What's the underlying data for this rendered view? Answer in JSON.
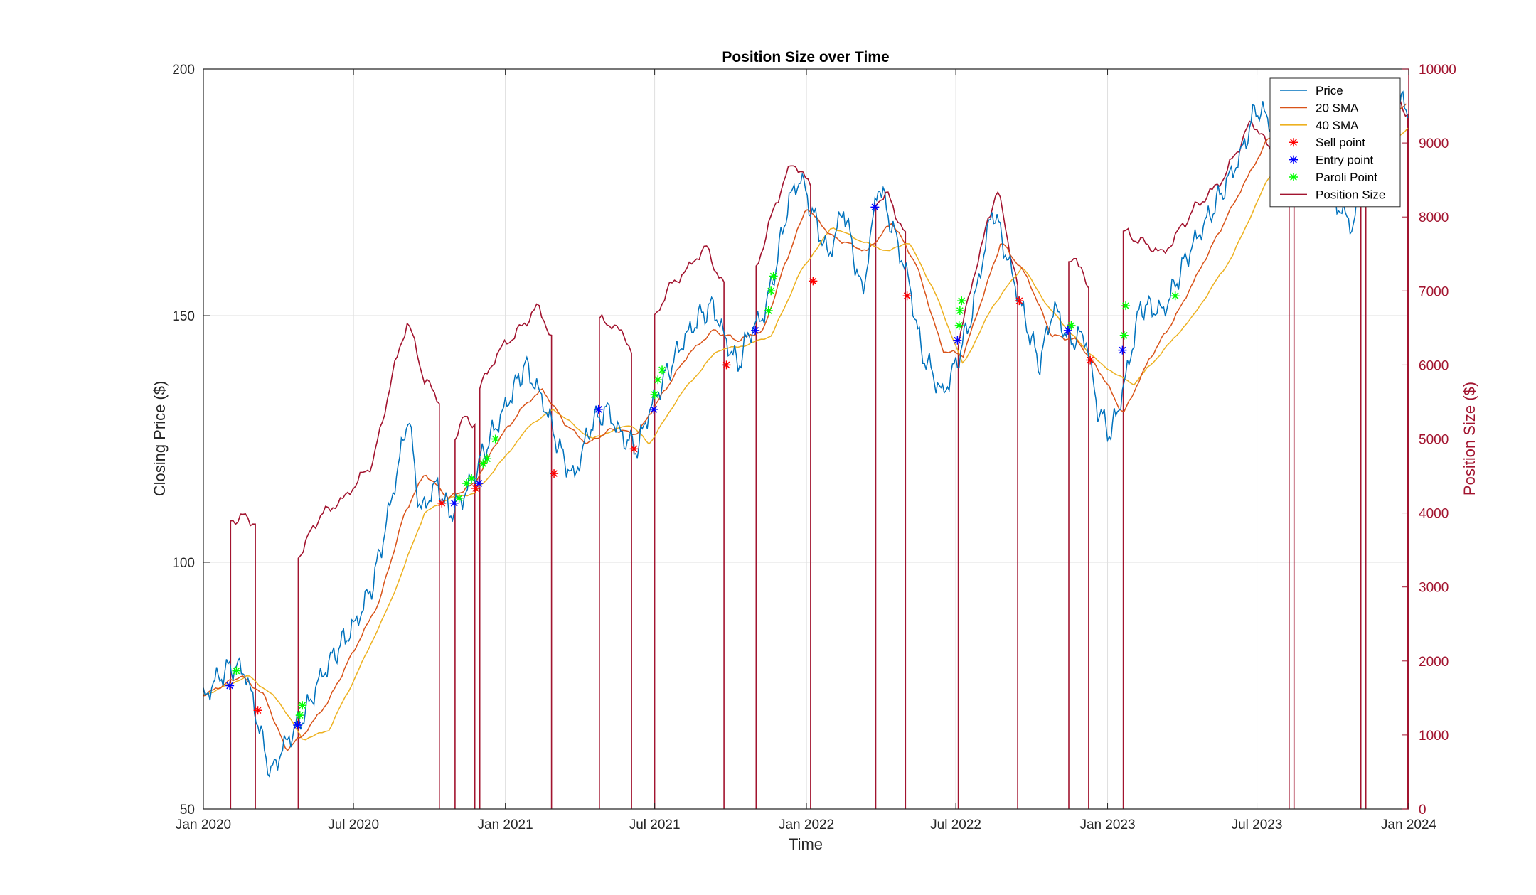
{
  "chart_data": {
    "type": "line",
    "title": "Position Size over Time",
    "xlabel": "Time",
    "ylabel": "Closing Price ($)",
    "ylabel_right": "Position Size ($)",
    "xlim": [
      "2020-01-01",
      "2024-01-01"
    ],
    "ylim": [
      50,
      200
    ],
    "ylim_right": [
      0,
      10000
    ],
    "x_ticks": [
      {
        "date": "2020-01-01",
        "label": "Jan 2020"
      },
      {
        "date": "2020-07-01",
        "label": "Jul 2020"
      },
      {
        "date": "2021-01-01",
        "label": "Jan 2021"
      },
      {
        "date": "2021-07-01",
        "label": "Jul 2021"
      },
      {
        "date": "2022-01-01",
        "label": "Jan 2022"
      },
      {
        "date": "2022-07-01",
        "label": "Jul 2022"
      },
      {
        "date": "2023-01-01",
        "label": "Jan 2023"
      },
      {
        "date": "2023-07-01",
        "label": "Jul 2023"
      },
      {
        "date": "2024-01-01",
        "label": "Jan 2024"
      }
    ],
    "y_ticks": [
      50,
      100,
      150,
      200
    ],
    "y_ticks_right": [
      0,
      1000,
      2000,
      3000,
      4000,
      5000,
      6000,
      7000,
      8000,
      9000,
      10000
    ],
    "grid": true,
    "legend_position": "top-right",
    "colors": {
      "price": "#0072BD",
      "sma20": "#D95319",
      "sma40": "#EDB120",
      "sell": "#FF0000",
      "entry": "#0000FF",
      "paroli": "#00FF00",
      "position": "#A2142F",
      "axis": "#262626",
      "grid": "#dfdfdf"
    },
    "legend": [
      {
        "key": "price",
        "label": "Price",
        "kind": "line"
      },
      {
        "key": "sma20",
        "label": "20 SMA",
        "kind": "line"
      },
      {
        "key": "sma40",
        "label": "40 SMA",
        "kind": "line"
      },
      {
        "key": "sell",
        "label": "Sell point",
        "kind": "marker"
      },
      {
        "key": "entry",
        "label": "Entry point",
        "kind": "marker"
      },
      {
        "key": "paroli",
        "label": "Paroli Point",
        "kind": "marker"
      },
      {
        "key": "position",
        "label": "Position Size",
        "kind": "line"
      }
    ],
    "price_keypoints": [
      [
        "2020-01-01",
        72
      ],
      [
        "2020-01-15",
        76
      ],
      [
        "2020-02-05",
        79
      ],
      [
        "2020-02-20",
        78
      ],
      [
        "2020-03-01",
        72
      ],
      [
        "2020-03-12",
        64
      ],
      [
        "2020-03-23",
        57
      ],
      [
        "2020-04-05",
        62
      ],
      [
        "2020-04-20",
        66
      ],
      [
        "2020-05-05",
        70
      ],
      [
        "2020-05-20",
        76
      ],
      [
        "2020-06-10",
        82
      ],
      [
        "2020-07-05",
        88
      ],
      [
        "2020-07-25",
        96
      ],
      [
        "2020-08-10",
        108
      ],
      [
        "2020-08-25",
        120
      ],
      [
        "2020-09-05",
        130
      ],
      [
        "2020-09-20",
        110
      ],
      [
        "2020-10-10",
        116
      ],
      [
        "2020-10-25",
        110
      ],
      [
        "2020-11-10",
        113
      ],
      [
        "2020-11-25",
        118
      ],
      [
        "2020-12-10",
        124
      ],
      [
        "2020-12-25",
        129
      ],
      [
        "2021-01-25",
        140
      ],
      [
        "2021-02-15",
        133
      ],
      [
        "2021-03-10",
        122
      ],
      [
        "2021-03-25",
        117
      ],
      [
        "2021-04-15",
        128
      ],
      [
        "2021-05-05",
        131
      ],
      [
        "2021-05-20",
        126
      ],
      [
        "2021-06-10",
        123
      ],
      [
        "2021-06-25",
        131
      ],
      [
        "2021-07-15",
        138
      ],
      [
        "2021-08-05",
        145
      ],
      [
        "2021-08-25",
        150
      ],
      [
        "2021-09-10",
        152
      ],
      [
        "2021-09-25",
        145
      ],
      [
        "2021-10-10",
        140
      ],
      [
        "2021-10-25",
        147
      ],
      [
        "2021-11-10",
        150
      ],
      [
        "2021-11-25",
        160
      ],
      [
        "2021-12-10",
        173
      ],
      [
        "2021-12-25",
        178
      ],
      [
        "2022-01-10",
        170
      ],
      [
        "2022-01-28",
        162
      ],
      [
        "2022-02-15",
        172
      ],
      [
        "2022-03-10",
        154
      ],
      [
        "2022-03-29",
        177
      ],
      [
        "2022-04-15",
        168
      ],
      [
        "2022-05-05",
        157
      ],
      [
        "2022-05-20",
        143
      ],
      [
        "2022-06-15",
        134
      ],
      [
        "2022-07-01",
        140
      ],
      [
        "2022-07-20",
        150
      ],
      [
        "2022-08-15",
        172
      ],
      [
        "2022-09-01",
        162
      ],
      [
        "2022-09-20",
        151
      ],
      [
        "2022-10-10",
        140
      ],
      [
        "2022-10-28",
        152
      ],
      [
        "2022-11-15",
        145
      ],
      [
        "2022-12-05",
        146
      ],
      [
        "2022-12-20",
        131
      ],
      [
        "2023-01-05",
        126
      ],
      [
        "2023-01-20",
        135
      ],
      [
        "2023-02-10",
        152
      ],
      [
        "2023-03-10",
        151
      ],
      [
        "2023-04-10",
        163
      ],
      [
        "2023-05-10",
        172
      ],
      [
        "2023-06-10",
        182
      ],
      [
        "2023-06-30",
        192
      ],
      [
        "2023-07-15",
        190
      ],
      [
        "2023-08-10",
        178
      ],
      [
        "2023-09-01",
        187
      ],
      [
        "2023-10-01",
        174
      ],
      [
        "2023-10-25",
        168
      ],
      [
        "2023-11-15",
        183
      ],
      [
        "2023-12-05",
        195
      ],
      [
        "2023-12-31",
        192
      ]
    ],
    "sma20_keypoints": [
      [
        "2020-01-01",
        73
      ],
      [
        "2020-02-15",
        77
      ],
      [
        "2020-03-15",
        73
      ],
      [
        "2020-04-10",
        62
      ],
      [
        "2020-05-01",
        65
      ],
      [
        "2020-06-01",
        72
      ],
      [
        "2020-07-01",
        82
      ],
      [
        "2020-08-01",
        92
      ],
      [
        "2020-09-01",
        110
      ],
      [
        "2020-09-25",
        118
      ],
      [
        "2020-10-25",
        113
      ],
      [
        "2020-11-25",
        116
      ],
      [
        "2020-12-20",
        124
      ],
      [
        "2021-01-25",
        132
      ],
      [
        "2021-02-15",
        135
      ],
      [
        "2021-03-15",
        128
      ],
      [
        "2021-04-10",
        124
      ],
      [
        "2021-05-10",
        127
      ],
      [
        "2021-06-10",
        126
      ],
      [
        "2021-07-10",
        134
      ],
      [
        "2021-08-10",
        142
      ],
      [
        "2021-09-10",
        147
      ],
      [
        "2021-10-10",
        145
      ],
      [
        "2021-11-10",
        147
      ],
      [
        "2021-12-05",
        160
      ],
      [
        "2022-01-01",
        172
      ],
      [
        "2022-02-01",
        166
      ],
      [
        "2022-03-15",
        163
      ],
      [
        "2022-04-15",
        169
      ],
      [
        "2022-05-15",
        160
      ],
      [
        "2022-06-15",
        143
      ],
      [
        "2022-07-10",
        142
      ],
      [
        "2022-08-01",
        153
      ],
      [
        "2022-08-25",
        165
      ],
      [
        "2022-09-25",
        158
      ],
      [
        "2022-10-25",
        146
      ],
      [
        "2022-11-25",
        145
      ],
      [
        "2022-12-25",
        138
      ],
      [
        "2023-01-20",
        130
      ],
      [
        "2023-02-20",
        141
      ],
      [
        "2023-03-25",
        150
      ],
      [
        "2023-05-01",
        162
      ],
      [
        "2023-06-10",
        175
      ],
      [
        "2023-07-15",
        186
      ],
      [
        "2023-08-25",
        184
      ],
      [
        "2023-09-25",
        183
      ],
      [
        "2023-11-01",
        178
      ],
      [
        "2023-12-10",
        190
      ],
      [
        "2023-12-31",
        193
      ]
    ],
    "sma40_keypoints": [
      [
        "2020-01-01",
        73
      ],
      [
        "2020-02-25",
        77
      ],
      [
        "2020-04-01",
        72
      ],
      [
        "2020-05-01",
        64
      ],
      [
        "2020-06-01",
        66
      ],
      [
        "2020-07-01",
        76
      ],
      [
        "2020-08-15",
        92
      ],
      [
        "2020-09-25",
        110
      ],
      [
        "2020-10-25",
        113
      ],
      [
        "2020-11-25",
        114
      ],
      [
        "2020-12-25",
        120
      ],
      [
        "2021-02-01",
        128
      ],
      [
        "2021-03-01",
        131
      ],
      [
        "2021-04-15",
        125
      ],
      [
        "2021-06-01",
        128
      ],
      [
        "2021-06-25",
        124
      ],
      [
        "2021-08-01",
        134
      ],
      [
        "2021-09-15",
        143
      ],
      [
        "2021-10-20",
        144
      ],
      [
        "2021-11-20",
        146
      ],
      [
        "2021-12-25",
        159
      ],
      [
        "2022-02-01",
        168
      ],
      [
        "2022-03-10",
        165
      ],
      [
        "2022-04-10",
        163
      ],
      [
        "2022-05-05",
        165
      ],
      [
        "2022-06-05",
        155
      ],
      [
        "2022-07-10",
        140
      ],
      [
        "2022-08-15",
        152
      ],
      [
        "2022-09-20",
        160
      ],
      [
        "2022-10-20",
        152
      ],
      [
        "2022-11-25",
        145
      ],
      [
        "2022-12-25",
        140
      ],
      [
        "2023-02-01",
        136
      ],
      [
        "2023-03-10",
        143
      ],
      [
        "2023-04-15",
        150
      ],
      [
        "2023-06-01",
        162
      ],
      [
        "2023-07-15",
        178
      ],
      [
        "2023-08-15",
        182
      ],
      [
        "2023-10-01",
        182
      ],
      [
        "2023-11-15",
        180
      ],
      [
        "2023-12-31",
        188
      ]
    ],
    "position_segments": [
      {
        "start": "2020-02-03",
        "end": "2020-03-05",
        "points": [
          [
            "2020-02-03",
            3900
          ],
          [
            "2020-02-20",
            3950
          ],
          [
            "2020-03-05",
            3850
          ]
        ]
      },
      {
        "start": "2020-04-25",
        "end": "2020-10-15",
        "points": [
          [
            "2020-04-25",
            3400
          ],
          [
            "2020-05-20",
            3950
          ],
          [
            "2020-06-20",
            4200
          ],
          [
            "2020-07-25",
            4700
          ],
          [
            "2020-08-20",
            6000
          ],
          [
            "2020-09-05",
            6600
          ],
          [
            "2020-09-25",
            5800
          ],
          [
            "2020-10-15",
            5500
          ]
        ]
      },
      {
        "start": "2020-11-01",
        "end": "2020-11-25",
        "points": [
          [
            "2020-11-01",
            5000
          ],
          [
            "2020-11-12",
            5300
          ],
          [
            "2020-11-25",
            5200
          ]
        ]
      },
      {
        "start": "2020-12-01",
        "end": "2021-02-28",
        "points": [
          [
            "2020-12-01",
            5700
          ],
          [
            "2020-12-25",
            6200
          ],
          [
            "2021-01-20",
            6500
          ],
          [
            "2021-02-10",
            6800
          ],
          [
            "2021-02-28",
            6300
          ]
        ]
      },
      {
        "start": "2021-04-25",
        "end": "2021-06-05",
        "points": [
          [
            "2021-04-25",
            6600
          ],
          [
            "2021-05-10",
            6550
          ],
          [
            "2021-05-25",
            6400
          ],
          [
            "2021-06-05",
            6150
          ]
        ]
      },
      {
        "start": "2021-07-01",
        "end": "2021-09-25",
        "points": [
          [
            "2021-07-01",
            6600
          ],
          [
            "2021-07-15",
            7000
          ],
          [
            "2021-08-10",
            7300
          ],
          [
            "2021-09-01",
            7600
          ],
          [
            "2021-09-25",
            7000
          ]
        ]
      },
      {
        "start": "2021-11-01",
        "end": "2022-01-08",
        "points": [
          [
            "2021-11-01",
            7300
          ],
          [
            "2021-11-25",
            8200
          ],
          [
            "2021-12-15",
            8750
          ],
          [
            "2022-01-08",
            8400
          ]
        ]
      },
      {
        "start": "2022-03-26",
        "end": "2022-05-02",
        "points": [
          [
            "2022-03-26",
            8200
          ],
          [
            "2022-04-10",
            8300
          ],
          [
            "2022-05-02",
            7700
          ]
        ]
      },
      {
        "start": "2022-07-04",
        "end": "2022-09-15",
        "points": [
          [
            "2022-07-04",
            6300
          ],
          [
            "2022-07-25",
            7300
          ],
          [
            "2022-08-20",
            8400
          ],
          [
            "2022-09-15",
            7000
          ]
        ]
      },
      {
        "start": "2022-11-15",
        "end": "2022-12-10",
        "points": [
          [
            "2022-11-15",
            7400
          ],
          [
            "2022-12-01",
            7350
          ],
          [
            "2022-12-10",
            6950
          ]
        ]
      },
      {
        "start": "2023-01-20",
        "end": "2023-08-10",
        "points": [
          [
            "2023-01-20",
            7800
          ],
          [
            "2023-03-10",
            7500
          ],
          [
            "2023-04-15",
            8100
          ],
          [
            "2023-05-20",
            8500
          ],
          [
            "2023-06-25",
            9300
          ],
          [
            "2023-08-10",
            8500
          ]
        ]
      },
      {
        "start": "2023-08-15",
        "end": "2023-11-05",
        "points": [
          [
            "2023-08-15",
            8800
          ],
          [
            "2023-09-20",
            8600
          ],
          [
            "2023-11-05",
            8400
          ]
        ]
      },
      {
        "start": "2023-11-10",
        "end": "2023-12-31",
        "points": [
          [
            "2023-11-10",
            8900
          ],
          [
            "2023-12-05",
            9700
          ],
          [
            "2023-12-31",
            9400
          ]
        ]
      }
    ],
    "sell_points": [
      [
        "2020-03-07",
        70
      ],
      [
        "2020-10-16",
        112
      ],
      [
        "2020-11-26",
        115
      ],
      [
        "2021-03-01",
        118
      ],
      [
        "2021-06-06",
        123
      ],
      [
        "2021-09-26",
        140
      ],
      [
        "2022-01-09",
        157
      ],
      [
        "2022-05-03",
        154
      ],
      [
        "2022-09-16",
        153
      ],
      [
        "2022-12-11",
        141
      ]
    ],
    "entry_points": [
      [
        "2020-02-02",
        75
      ],
      [
        "2020-04-24",
        67
      ],
      [
        "2020-10-31",
        112
      ],
      [
        "2020-11-30",
        116
      ],
      [
        "2021-04-24",
        131
      ],
      [
        "2021-06-30",
        131
      ],
      [
        "2021-10-31",
        147
      ],
      [
        "2022-03-25",
        172
      ],
      [
        "2022-07-03",
        145
      ],
      [
        "2022-11-14",
        147
      ],
      [
        "2023-01-19",
        143
      ]
    ],
    "paroli_points": [
      [
        "2020-02-10",
        78
      ],
      [
        "2020-04-27",
        69
      ],
      [
        "2020-04-30",
        71
      ],
      [
        "2020-11-06",
        113
      ],
      [
        "2020-11-15",
        116
      ],
      [
        "2020-11-21",
        117
      ],
      [
        "2020-12-05",
        120
      ],
      [
        "2020-12-10",
        121
      ],
      [
        "2020-12-20",
        125
      ],
      [
        "2021-07-01",
        134
      ],
      [
        "2021-07-05",
        137
      ],
      [
        "2021-07-10",
        139
      ],
      [
        "2021-11-16",
        151
      ],
      [
        "2021-11-19",
        155
      ],
      [
        "2021-11-22",
        158
      ],
      [
        "2022-07-05",
        148
      ],
      [
        "2022-07-06",
        151
      ],
      [
        "2022-07-08",
        153
      ],
      [
        "2022-11-18",
        148
      ],
      [
        "2023-01-21",
        146
      ],
      [
        "2023-01-23",
        152
      ],
      [
        "2023-03-24",
        154
      ]
    ]
  }
}
